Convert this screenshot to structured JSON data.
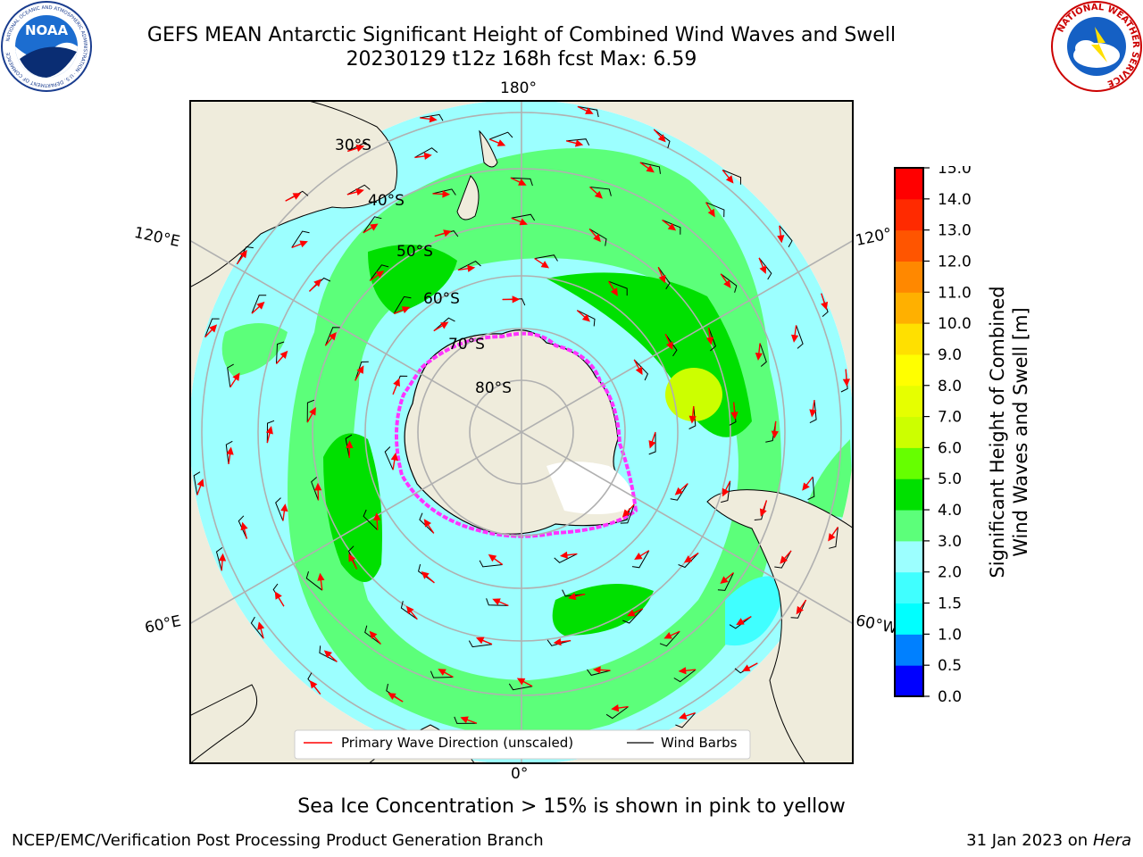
{
  "header": {
    "title_line1": "GEFS MEAN Antarctic Significant Height of Combined Wind Waves and Swell",
    "title_line2": "20230129 t12z 168h fcst   Max: 6.59"
  },
  "logos": {
    "noaa_text": "NOAA",
    "noaa_ring_text": "NATIONAL OCEANIC AND ATMOSPHERIC ADMINISTRATION · U.S. DEPARTMENT OF COMMERCE",
    "nws_ring_text": "NATIONAL WEATHER SERVICE"
  },
  "map": {
    "projection": "south-polar-stereographic",
    "top_longitude_label": "180°",
    "bottom_longitude_label": "0°",
    "left_upper_label": "120°E",
    "left_lower_label": "60°E",
    "right_upper_label": "120°",
    "right_lower_label": "60°W",
    "latitude_labels": [
      "30°S",
      "40°S",
      "50°S",
      "60°S",
      "70°S",
      "80°S"
    ],
    "colors": {
      "land": "#efecdc",
      "ice_edge": "#ff33ff",
      "arrow": "#ff0000",
      "barb": "#000000",
      "grid": "#b0b0b0"
    },
    "legend": {
      "wave_label": "Primary Wave Direction (unscaled)",
      "barb_label": "Wind Barbs"
    }
  },
  "colorbar": {
    "title_line1": "Significant Height of Combined",
    "title_line2": "Wind Waves and Swell [m]",
    "ticks": [
      "0.0",
      "0.5",
      "1.0",
      "1.5",
      "2.0",
      "3.0",
      "4.0",
      "5.0",
      "6.0",
      "7.0",
      "8.0",
      "9.0",
      "10.0",
      "11.0",
      "12.0",
      "13.0",
      "14.0",
      "15.0"
    ],
    "colors": [
      "#0000ff",
      "#0080ff",
      "#00ffff",
      "#40ffff",
      "#9cffff",
      "#5cff7a",
      "#00e000",
      "#66ff00",
      "#ccff00",
      "#e6ff00",
      "#ffff00",
      "#ffe000",
      "#ffb000",
      "#ff8800",
      "#ff5500",
      "#ff2a00",
      "#ff0000"
    ]
  },
  "footer": {
    "note": "Sea Ice Concentration > 15% is shown in pink to yellow",
    "left": "NCEP/EMC/Verification Post Processing Product Generation Branch",
    "right_date": "31 Jan 2023 on",
    "right_machine": "Hera"
  }
}
